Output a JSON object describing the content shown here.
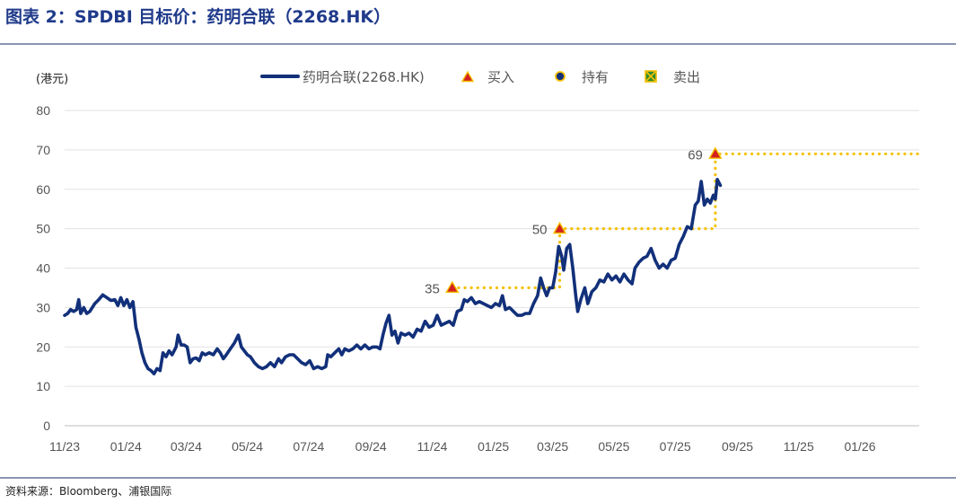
{
  "title": "图表 2：SPDBI 目标价：药明合联（2268.HK）",
  "source": "资料来源：Bloomberg、浦银国际",
  "chart_data": {
    "type": "line",
    "unit_label": "(港元)",
    "ylim": [
      0,
      80
    ],
    "yticks": [
      0,
      10,
      20,
      30,
      40,
      50,
      60,
      70,
      80
    ],
    "xlim": [
      "2023-11-01",
      "2026-03-01"
    ],
    "xticks": [
      {
        "date": "2023-11-01",
        "label": "11/23"
      },
      {
        "date": "2024-01-01",
        "label": "01/24"
      },
      {
        "date": "2024-03-01",
        "label": "03/24"
      },
      {
        "date": "2024-05-01",
        "label": "05/24"
      },
      {
        "date": "2024-07-01",
        "label": "07/24"
      },
      {
        "date": "2024-09-01",
        "label": "09/24"
      },
      {
        "date": "2024-11-01",
        "label": "11/24"
      },
      {
        "date": "2025-01-01",
        "label": "01/25"
      },
      {
        "date": "2025-03-01",
        "label": "03/25"
      },
      {
        "date": "2025-05-01",
        "label": "05/25"
      },
      {
        "date": "2025-07-01",
        "label": "07/25"
      },
      {
        "date": "2025-09-01",
        "label": "09/25"
      },
      {
        "date": "2025-11-01",
        "label": "11/25"
      },
      {
        "date": "2026-01-01",
        "label": "01/26"
      }
    ],
    "grid": true,
    "legend_position": "top",
    "colors": {
      "price": "#12307a",
      "target": "#f5c000",
      "buy_fill": "#d42020",
      "buy_edge": "#f5c000",
      "hold": "#12307a",
      "sell": "#2e8b2e"
    },
    "legend": {
      "price": "药明合联(2268.HK)",
      "buy": "买入",
      "hold": "持有",
      "sell": "卖出"
    },
    "series": [
      {
        "name": "药明合联(2268.HK)",
        "points": [
          [
            "2023-11-01",
            28
          ],
          [
            "2023-11-04",
            28.5
          ],
          [
            "2023-11-07",
            29.5
          ],
          [
            "2023-11-10",
            29
          ],
          [
            "2023-11-13",
            29.5
          ],
          [
            "2023-11-15",
            32
          ],
          [
            "2023-11-17",
            28.5
          ],
          [
            "2023-11-20",
            30
          ],
          [
            "2023-11-23",
            28.5
          ],
          [
            "2023-11-26",
            29
          ],
          [
            "2023-12-01",
            31
          ],
          [
            "2023-12-05",
            32
          ],
          [
            "2023-12-09",
            33.2
          ],
          [
            "2023-12-13",
            32.5
          ],
          [
            "2023-12-17",
            31.8
          ],
          [
            "2023-12-21",
            32
          ],
          [
            "2023-12-24",
            30.5
          ],
          [
            "2023-12-27",
            32.5
          ],
          [
            "2023-12-30",
            30.5
          ],
          [
            "2024-01-02",
            32
          ],
          [
            "2024-01-05",
            30
          ],
          [
            "2024-01-08",
            31.5
          ],
          [
            "2024-01-11",
            25
          ],
          [
            "2024-01-14",
            22
          ],
          [
            "2024-01-17",
            18.5
          ],
          [
            "2024-01-20",
            16
          ],
          [
            "2024-01-23",
            14.5
          ],
          [
            "2024-01-26",
            14
          ],
          [
            "2024-01-29",
            13.2
          ],
          [
            "2024-02-01",
            14.5
          ],
          [
            "2024-02-04",
            14
          ],
          [
            "2024-02-07",
            18.5
          ],
          [
            "2024-02-10",
            17.5
          ],
          [
            "2024-02-13",
            19
          ],
          [
            "2024-02-16",
            18
          ],
          [
            "2024-02-20",
            20
          ],
          [
            "2024-02-22",
            23
          ],
          [
            "2024-02-25",
            20.5
          ],
          [
            "2024-02-28",
            20.5
          ],
          [
            "2024-03-02",
            20
          ],
          [
            "2024-03-05",
            16
          ],
          [
            "2024-03-08",
            17
          ],
          [
            "2024-03-11",
            17.2
          ],
          [
            "2024-03-14",
            16.5
          ],
          [
            "2024-03-17",
            18.5
          ],
          [
            "2024-03-20",
            18
          ],
          [
            "2024-03-24",
            18.5
          ],
          [
            "2024-03-28",
            18
          ],
          [
            "2024-04-01",
            19.5
          ],
          [
            "2024-04-04",
            18.5
          ],
          [
            "2024-04-07",
            17
          ],
          [
            "2024-04-10",
            18
          ],
          [
            "2024-04-14",
            19.5
          ],
          [
            "2024-04-18",
            21
          ],
          [
            "2024-04-22",
            23
          ],
          [
            "2024-04-25",
            20
          ],
          [
            "2024-04-28",
            19
          ],
          [
            "2024-05-01",
            18
          ],
          [
            "2024-05-04",
            17.5
          ],
          [
            "2024-05-08",
            16
          ],
          [
            "2024-05-12",
            15
          ],
          [
            "2024-05-16",
            14.5
          ],
          [
            "2024-05-20",
            15
          ],
          [
            "2024-05-24",
            16
          ],
          [
            "2024-05-28",
            15
          ],
          [
            "2024-06-01",
            17
          ],
          [
            "2024-06-04",
            16
          ],
          [
            "2024-06-08",
            17.5
          ],
          [
            "2024-06-12",
            18
          ],
          [
            "2024-06-16",
            18
          ],
          [
            "2024-06-20",
            17
          ],
          [
            "2024-06-24",
            16
          ],
          [
            "2024-06-28",
            15.5
          ],
          [
            "2024-07-02",
            16.5
          ],
          [
            "2024-07-06",
            14.5
          ],
          [
            "2024-07-10",
            15
          ],
          [
            "2024-07-14",
            14.5
          ],
          [
            "2024-07-18",
            15
          ],
          [
            "2024-07-20",
            18
          ],
          [
            "2024-07-23",
            17.5
          ],
          [
            "2024-07-27",
            18.5
          ],
          [
            "2024-07-31",
            19.5
          ],
          [
            "2024-08-03",
            18
          ],
          [
            "2024-08-06",
            19.5
          ],
          [
            "2024-08-10",
            19
          ],
          [
            "2024-08-14",
            19.5
          ],
          [
            "2024-08-18",
            20.5
          ],
          [
            "2024-08-22",
            19.5
          ],
          [
            "2024-08-26",
            20.5
          ],
          [
            "2024-08-30",
            19.5
          ],
          [
            "2024-09-03",
            20
          ],
          [
            "2024-09-07",
            20
          ],
          [
            "2024-09-10",
            19.5
          ],
          [
            "2024-09-13",
            23
          ],
          [
            "2024-09-16",
            26
          ],
          [
            "2024-09-19",
            28
          ],
          [
            "2024-09-22",
            23
          ],
          [
            "2024-09-25",
            24
          ],
          [
            "2024-09-28",
            21
          ],
          [
            "2024-10-01",
            23.5
          ],
          [
            "2024-10-05",
            23
          ],
          [
            "2024-10-09",
            23.5
          ],
          [
            "2024-10-13",
            22.5
          ],
          [
            "2024-10-17",
            24.5
          ],
          [
            "2024-10-21",
            24
          ],
          [
            "2024-10-25",
            26.5
          ],
          [
            "2024-10-29",
            25
          ],
          [
            "2024-11-02",
            25.5
          ],
          [
            "2024-11-06",
            28
          ],
          [
            "2024-11-10",
            25.5
          ],
          [
            "2024-11-14",
            26
          ],
          [
            "2024-11-18",
            26.5
          ],
          [
            "2024-11-22",
            25.5
          ],
          [
            "2024-11-26",
            29
          ],
          [
            "2024-11-30",
            29.5
          ],
          [
            "2024-12-03",
            32
          ],
          [
            "2024-12-06",
            31.5
          ],
          [
            "2024-12-10",
            32.5
          ],
          [
            "2024-12-14",
            31
          ],
          [
            "2024-12-18",
            31.5
          ],
          [
            "2024-12-22",
            31
          ],
          [
            "2024-12-26",
            30.5
          ],
          [
            "2024-12-30",
            30
          ],
          [
            "2025-01-03",
            31
          ],
          [
            "2025-01-07",
            30.5
          ],
          [
            "2025-01-10",
            33
          ],
          [
            "2025-01-13",
            29.5
          ],
          [
            "2025-01-17",
            30
          ],
          [
            "2025-01-21",
            29
          ],
          [
            "2025-01-25",
            28
          ],
          [
            "2025-01-29",
            28
          ],
          [
            "2025-02-02",
            28.5
          ],
          [
            "2025-02-06",
            28.5
          ],
          [
            "2025-02-10",
            31
          ],
          [
            "2025-02-14",
            33
          ],
          [
            "2025-02-17",
            37.5
          ],
          [
            "2025-02-20",
            35
          ],
          [
            "2025-02-23",
            33
          ],
          [
            "2025-02-26",
            35
          ],
          [
            "2025-03-01",
            35
          ],
          [
            "2025-03-04",
            39
          ],
          [
            "2025-03-07",
            45.5
          ],
          [
            "2025-03-10",
            43
          ],
          [
            "2025-03-12",
            39.5
          ],
          [
            "2025-03-15",
            45
          ],
          [
            "2025-03-18",
            46
          ],
          [
            "2025-03-21",
            40
          ],
          [
            "2025-03-24",
            33
          ],
          [
            "2025-03-26",
            29
          ],
          [
            "2025-03-29",
            32
          ],
          [
            "2025-04-02",
            35
          ],
          [
            "2025-04-05",
            31
          ],
          [
            "2025-04-09",
            34
          ],
          [
            "2025-04-13",
            35
          ],
          [
            "2025-04-17",
            37
          ],
          [
            "2025-04-21",
            36.5
          ],
          [
            "2025-04-25",
            38.5
          ],
          [
            "2025-04-29",
            37
          ],
          [
            "2025-05-03",
            38
          ],
          [
            "2025-05-07",
            36.5
          ],
          [
            "2025-05-11",
            38.5
          ],
          [
            "2025-05-15",
            37
          ],
          [
            "2025-05-19",
            36
          ],
          [
            "2025-05-22",
            40
          ],
          [
            "2025-05-26",
            41.5
          ],
          [
            "2025-05-30",
            42.5
          ],
          [
            "2025-06-03",
            43
          ],
          [
            "2025-06-07",
            45
          ],
          [
            "2025-06-11",
            42
          ],
          [
            "2025-06-15",
            40
          ],
          [
            "2025-06-19",
            41
          ],
          [
            "2025-06-23",
            40
          ],
          [
            "2025-06-27",
            42
          ],
          [
            "2025-07-01",
            42.5
          ],
          [
            "2025-07-05",
            46
          ],
          [
            "2025-07-09",
            48
          ],
          [
            "2025-07-13",
            50.5
          ],
          [
            "2025-07-17",
            50
          ],
          [
            "2025-07-21",
            56
          ],
          [
            "2025-07-24",
            57
          ],
          [
            "2025-07-27",
            62
          ],
          [
            "2025-07-30",
            56
          ],
          [
            "2025-08-02",
            57.5
          ],
          [
            "2025-08-05",
            56.5
          ],
          [
            "2025-08-08",
            58.5
          ],
          [
            "2025-08-10",
            57.5
          ],
          [
            "2025-08-12",
            62.5
          ],
          [
            "2025-08-15",
            61
          ]
        ]
      },
      {
        "name": "target_price",
        "style": "dotted-step",
        "points": [
          [
            "2024-11-21",
            35
          ],
          [
            "2025-03-08",
            35
          ],
          [
            "2025-03-08",
            50
          ],
          [
            "2025-08-10",
            50
          ],
          [
            "2025-08-10",
            69
          ],
          [
            "2026-02-28",
            69
          ]
        ]
      }
    ],
    "ratings": [
      {
        "date": "2024-11-21",
        "value": 35,
        "rating": "buy",
        "label": "35"
      },
      {
        "date": "2025-03-08",
        "value": 50,
        "rating": "buy",
        "label": "50"
      },
      {
        "date": "2025-08-10",
        "value": 69,
        "rating": "buy",
        "label": "69"
      }
    ]
  }
}
